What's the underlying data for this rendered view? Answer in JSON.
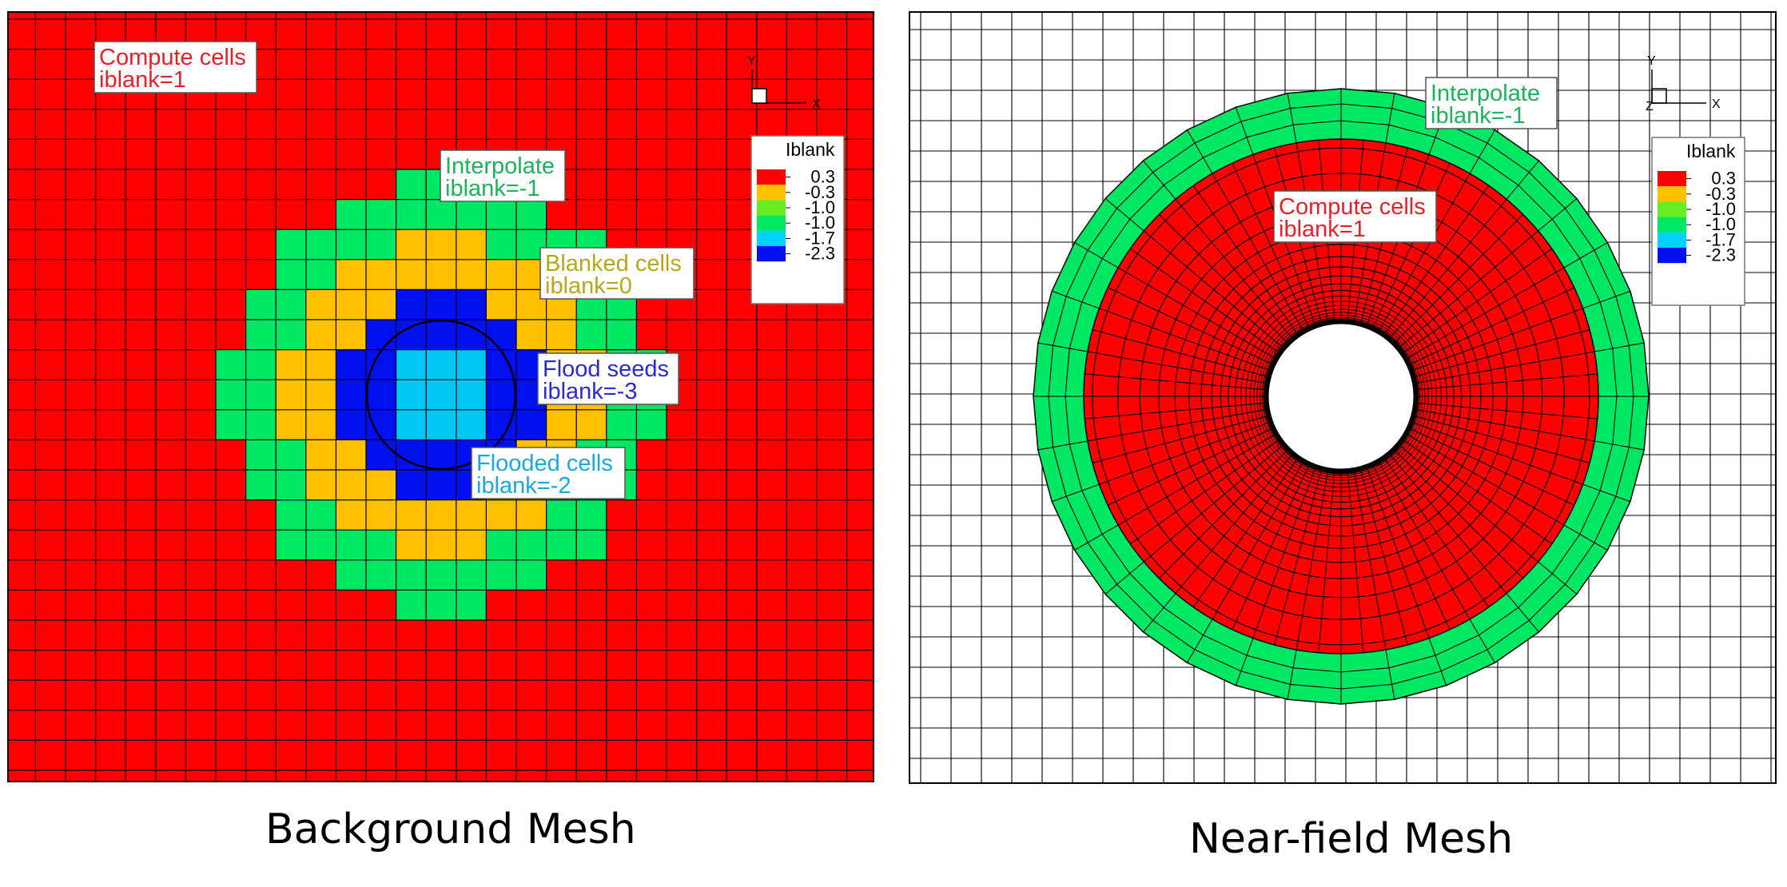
{
  "panels": [
    {
      "id": "background",
      "caption": "Background Mesh",
      "annotations": [
        {
          "lines": [
            "Compute cells",
            "iblank=1"
          ],
          "color": "#e8202a"
        },
        {
          "lines": [
            "Interpolate",
            "iblank=-1"
          ],
          "color": "#1db35a"
        },
        {
          "lines": [
            "Blanked cells",
            "iblank=0"
          ],
          "color": "#b8a817"
        },
        {
          "lines": [
            "Flood seeds",
            "iblank=-3"
          ],
          "color": "#2b2bd6"
        },
        {
          "lines": [
            "Flooded cells",
            "iblank=-2"
          ],
          "color": "#1aa8e0"
        }
      ],
      "legend": {
        "title": "Iblank",
        "ticks": [
          "0.3",
          "-0.3",
          "-1.0",
          "-1.0",
          "-1.7",
          "-2.3"
        ]
      },
      "axes": {
        "y": "Y",
        "x": "X"
      }
    },
    {
      "id": "nearfield",
      "caption": "Near-field Mesh",
      "annotations": [
        {
          "lines": [
            "Interpolate",
            "iblank=-1"
          ],
          "color": "#1db35a"
        },
        {
          "lines": [
            "Compute cells",
            "iblank=1"
          ],
          "color": "#e8202a"
        }
      ],
      "legend": {
        "title": "Iblank",
        "ticks": [
          "0.3",
          "-0.3",
          "-1.0",
          "-1.0",
          "-1.7",
          "-2.3"
        ]
      },
      "axes": {
        "y": "Y",
        "x": "X",
        "z": "Z"
      }
    }
  ],
  "colors": {
    "compute": "#ff0000",
    "blanked": "#ffc000",
    "interpolate": "#00e763",
    "flooded": "#00c8f5",
    "seed": "#0010ee",
    "legend_band": [
      "#ff0000",
      "#ffc000",
      "#66ee22",
      "#00e763",
      "#00d2ff",
      "#0010ee"
    ]
  }
}
